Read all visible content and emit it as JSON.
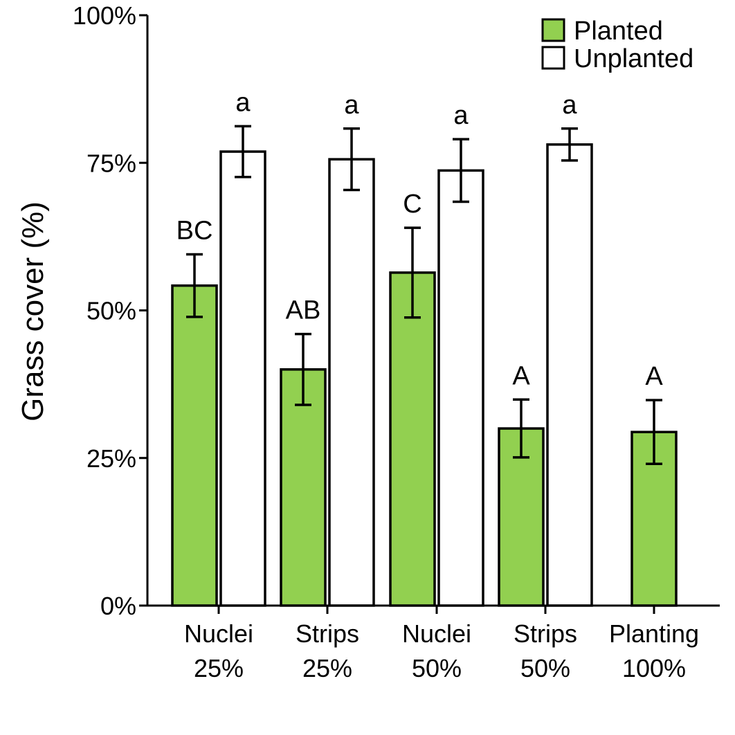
{
  "chart_data": {
    "type": "bar",
    "ylabel": "Grass cover (%)",
    "ylim": [
      0,
      100
    ],
    "y_ticks": [
      "0%",
      "25%",
      "50%",
      "75%",
      "100%"
    ],
    "categories": [
      [
        "Nuclei",
        "25%"
      ],
      [
        "Strips",
        "25%"
      ],
      [
        "Nuclei",
        "50%"
      ],
      [
        "Strips",
        "50%"
      ],
      [
        "Planting",
        "100%"
      ]
    ],
    "legend_position": "top-right",
    "series": [
      {
        "name": "Planted",
        "color": "#92d050",
        "values": [
          54.2,
          40.0,
          56.4,
          30.0,
          29.4
        ],
        "error": [
          5.3,
          6.0,
          7.6,
          4.9,
          5.4
        ],
        "labels": [
          "BC",
          "AB",
          "C",
          "A",
          "A"
        ]
      },
      {
        "name": "Unplanted",
        "color": "#ffffff",
        "values": [
          76.9,
          75.6,
          73.7,
          78.1,
          null
        ],
        "error": [
          4.3,
          5.2,
          5.3,
          2.7,
          null
        ],
        "labels": [
          "a",
          "a",
          "a",
          "a",
          ""
        ]
      }
    ]
  }
}
